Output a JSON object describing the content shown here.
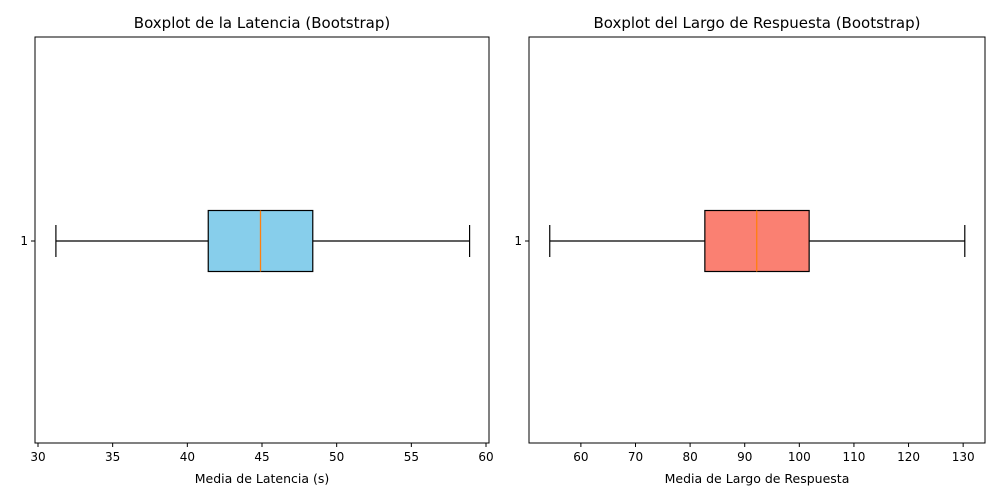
{
  "chart_data": [
    {
      "type": "boxplot",
      "orientation": "horizontal",
      "title": "Boxplot de la Latencia (Bootstrap)",
      "xlabel": "Media de Latencia (s)",
      "ylabel": "",
      "xlim": [
        29.8,
        60.2
      ],
      "xticks": [
        30,
        35,
        40,
        45,
        50,
        55,
        60
      ],
      "yticks": [
        "1"
      ],
      "box_color": "#87CEEB",
      "median_color": "#FF7F0E",
      "box": {
        "whisker_low": 31.2,
        "q1": 41.4,
        "median": 44.9,
        "q3": 48.4,
        "whisker_high": 58.9
      }
    },
    {
      "type": "boxplot",
      "orientation": "horizontal",
      "title": "Boxplot del Largo de Respuesta (Bootstrap)",
      "xlabel": "Media de Largo de Respuesta",
      "ylabel": "",
      "xlim": [
        50.5,
        134.0
      ],
      "xticks": [
        60,
        70,
        80,
        90,
        100,
        110,
        120,
        130
      ],
      "yticks": [
        "1"
      ],
      "box_color": "#FA8072",
      "median_color": "#FF7F0E",
      "box": {
        "whisker_low": 54.3,
        "q1": 82.7,
        "median": 92.2,
        "q3": 101.8,
        "whisker_high": 130.3
      }
    }
  ]
}
